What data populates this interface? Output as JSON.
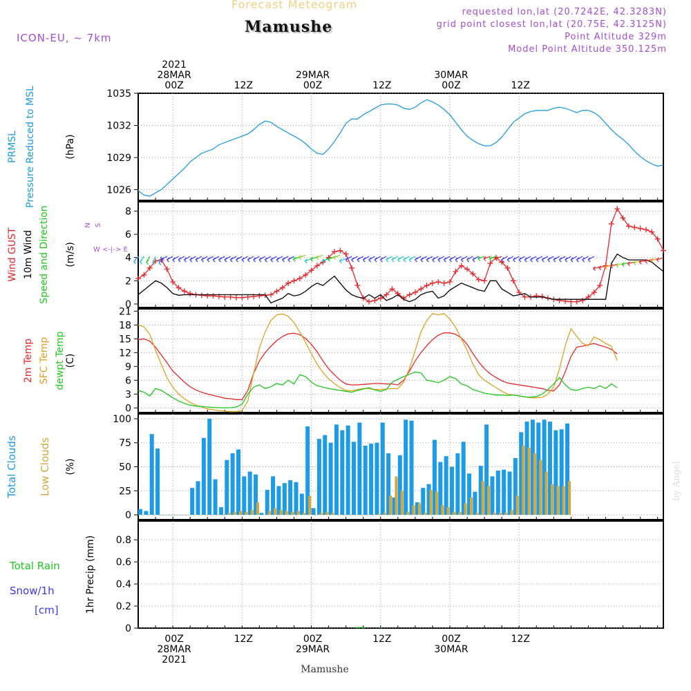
{
  "header": {
    "product": "Forecast Meteogram",
    "location": "Mamushe",
    "model": "ICON-EU, ~ 7km",
    "requested": "requested lon,lat (20.7242E, 42.3283N)",
    "grid": "grid point closest lon,lat (20.75E, 42.3125N)",
    "point_alt": "Point Altitude 329m",
    "model_alt": "Model Point Altitude 350.125m",
    "credit": "by Angel",
    "footer": "Mamushe"
  },
  "colors": {
    "pressure": "#1e9be6",
    "gust": "#e8262a",
    "wind": "#000000",
    "t2m": "#e8262a",
    "sfc": "#e0a020",
    "dewpt": "#1ec81e",
    "total_cloud": "#1e9be6",
    "low_cloud": "#d4a83a",
    "rain": "#1ec81e",
    "snow": "#3838f0",
    "purple": "#a64cd4"
  },
  "chart_data": {
    "type": "meteogram",
    "x_unit": "hours from 2021-03-27 18Z (hourly)",
    "time_axis": {
      "top_ticks": [
        {
          "h": 6,
          "lines": [
            "2021",
            "28MAR",
            "00Z"
          ]
        },
        {
          "h": 18,
          "lines": [
            "12Z"
          ]
        },
        {
          "h": 30,
          "lines": [
            "29MAR",
            "00Z"
          ]
        },
        {
          "h": 42,
          "lines": [
            "12Z"
          ]
        },
        {
          "h": 54,
          "lines": [
            "30MAR",
            "00Z"
          ]
        },
        {
          "h": 66,
          "lines": [
            "12Z"
          ]
        }
      ],
      "bottom_ticks": [
        {
          "h": 6,
          "lines": [
            "00Z",
            "28MAR",
            "2021"
          ]
        },
        {
          "h": 18,
          "lines": [
            "12Z"
          ]
        },
        {
          "h": 30,
          "lines": [
            "00Z",
            "29MAR"
          ]
        },
        {
          "h": 42,
          "lines": [
            "12Z"
          ]
        },
        {
          "h": 54,
          "lines": [
            "00Z",
            "30MAR"
          ]
        },
        {
          "h": 66,
          "lines": [
            "12Z"
          ]
        }
      ]
    },
    "panels": [
      {
        "id": "pressure",
        "title": "PRMSL Pressure Reduced to MSL",
        "ylabel": "(hPa)",
        "y_ticks": [
          1026,
          1029,
          1032,
          1035
        ],
        "ylim": [
          1025,
          1035
        ],
        "series": [
          {
            "name": "PRMSL",
            "color_key": "pressure",
            "values": [
              1025.9,
              1025.5,
              1025.4,
              1025.7,
              1026,
              1026.5,
              1027,
              1027.5,
              1028,
              1028.6,
              1029,
              1029.4,
              1029.6,
              1029.8,
              1030.2,
              1030.4,
              1030.6,
              1030.8,
              1031,
              1031.2,
              1031.6,
              1032.1,
              1032.4,
              1032.3,
              1031.9,
              1031.6,
              1031.3,
              1031,
              1030.7,
              1030.3,
              1029.8,
              1029.4,
              1029.3,
              1029.8,
              1030.5,
              1031.3,
              1032.2,
              1032.6,
              1032.6,
              1033,
              1033.3,
              1033.6,
              1033.9,
              1034.0,
              1034.0,
              1033.9,
              1033.6,
              1033.5,
              1033.7,
              1034.1,
              1034.4,
              1034.2,
              1033.9,
              1033.5,
              1033,
              1032.3,
              1031.6,
              1031.0,
              1030.6,
              1030.3,
              1030.1,
              1030.1,
              1030.4,
              1030.9,
              1031.6,
              1032.3,
              1032.7,
              1033.1,
              1033.3,
              1033.4,
              1033.4,
              1033.4,
              1033.6,
              1033.7,
              1033.6,
              1033.4,
              1033.2,
              1033.4,
              1033.4,
              1033.2,
              1032.8,
              1032.2,
              1031.6,
              1031.1,
              1030.7,
              1030.2,
              1029.6,
              1029.1,
              1028.7,
              1028.4,
              1028.2,
              1028.3
            ]
          }
        ]
      },
      {
        "id": "wind",
        "title_lines": [
          "Wind GUST",
          "10m Wind",
          "Speed and Direction"
        ],
        "ylabel": "(m/s)",
        "compass": [
          "N",
          "W <-|-> E",
          "S"
        ],
        "y_ticks": [
          0,
          2,
          4,
          6,
          8
        ],
        "ylim": [
          -0.3,
          8.8
        ],
        "series": [
          {
            "name": "Wind GUST",
            "color_key": "gust",
            "marker": "plus",
            "values": [
              2.2,
              2.5,
              3.1,
              3.7,
              3.8,
              3.0,
              1.9,
              1.4,
              1.1,
              0.9,
              0.8,
              0.75,
              0.7,
              0.7,
              0.65,
              0.6,
              0.6,
              0.55,
              0.55,
              0.6,
              0.65,
              0.7,
              0.75,
              0.8,
              1.1,
              1.4,
              1.8,
              2.0,
              2.2,
              2.5,
              2.9,
              3.3,
              3.6,
              4.0,
              4.5,
              4.6,
              4.3,
              3.1,
              1.6,
              0.5,
              0.2,
              0.3,
              0.5,
              0.8,
              1.3,
              0.9,
              0.5,
              0.8,
              1.0,
              1.3,
              1.6,
              1.8,
              1.9,
              1.8,
              1.9,
              2.8,
              3.3,
              3.0,
              2.6,
              2.1,
              2.0,
              3.5,
              4.0,
              3.6,
              3.1,
              2.0,
              1.0,
              0.6,
              0.6,
              0.7,
              0.65,
              0.5,
              0.4,
              0.3,
              0.25,
              0.2,
              0.2,
              0.3,
              0.6,
              1.0,
              1.6,
              3.3,
              6.9,
              8.2,
              7.4,
              6.7,
              6.6,
              6.5,
              6.4,
              6.2,
              5.6,
              4.6
            ]
          },
          {
            "name": "10m Wind",
            "color_key": "wind",
            "values": [
              0.8,
              1.2,
              1.6,
              2.0,
              1.8,
              1.4,
              0.9,
              0.75,
              0.8,
              0.8,
              0.8,
              0.8,
              0.8,
              0.8,
              0.8,
              0.8,
              0.8,
              0.8,
              0.8,
              0.8,
              0.8,
              0.8,
              0.8,
              0.1,
              0.3,
              0.5,
              0.9,
              0.7,
              0.8,
              1.1,
              1.5,
              1.8,
              1.6,
              2.0,
              2.4,
              1.8,
              1.2,
              0.8,
              0.6,
              0.5,
              0.8,
              0.5,
              0.8,
              0.3,
              0.5,
              0.8,
              0.4,
              0.2,
              0.4,
              0.8,
              1.0,
              1.1,
              0.5,
              0.7,
              1.2,
              1.5,
              1.8,
              1.6,
              1.4,
              1.2,
              1.1,
              2.0,
              2.0,
              1.3,
              1.0,
              0.7,
              0.8,
              0.9,
              0.6,
              0.6,
              0.6,
              0.5,
              0.4,
              0.4,
              0.4,
              0.4,
              0.4,
              0.4,
              0.4,
              0.4,
              0.4,
              0.4,
              3.5,
              4.3,
              4.0,
              3.8,
              3.8,
              3.8,
              3.8,
              3.6,
              3.2,
              2.8
            ]
          }
        ]
      },
      {
        "id": "temperature",
        "title_lines": [
          "2m Temp",
          "SFC Temp",
          "dewpt Temp"
        ],
        "ylabel": "(C)",
        "y_ticks": [
          0,
          3,
          6,
          9,
          12,
          15,
          18,
          21
        ],
        "ylim": [
          -1,
          21.5
        ],
        "series": [
          {
            "name": "2m Temp",
            "color_key": "t2m",
            "values": [
              14.8,
              15.0,
              14.5,
              13.2,
              11.5,
              9.8,
              8.0,
              6.8,
              5.6,
              4.6,
              3.9,
              3.4,
              3.0,
              2.7,
              2.4,
              2.1,
              2.0,
              1.8,
              1.8,
              3.8,
              7.5,
              10.2,
              12.0,
              13.4,
              14.6,
              15.5,
              16.1,
              16.2,
              15.9,
              15.1,
              13.8,
              12.2,
              10.2,
              8.5,
              7.2,
              6.0,
              5.2,
              5.0,
              5.0,
              5.1,
              5.2,
              5.3,
              5.3,
              5.2,
              5.2,
              5.0,
              6.0,
              8.0,
              10.2,
              12.0,
              13.5,
              14.8,
              15.8,
              16.3,
              16.3,
              16.0,
              15.2,
              13.8,
              11.8,
              10.0,
              8.5,
              7.4,
              6.6,
              5.9,
              5.4,
              5.2,
              5.0,
              4.8,
              4.6,
              4.4,
              4.2,
              3.8,
              3.7,
              5.0,
              7.8,
              11.2,
              13.2,
              13.4,
              13.7,
              14.0,
              13.6,
              13.2,
              12.7,
              11.7
            ]
          },
          {
            "name": "SFC Temp",
            "color_key": "sfc",
            "values": [
              18.0,
              17.6,
              16.0,
              12.5,
              9.5,
              6.5,
              4.5,
              3.0,
              2.0,
              1.2,
              0.6,
              0.2,
              -0.2,
              -0.4,
              -0.6,
              -0.7,
              -0.8,
              -0.8,
              -0.6,
              1.5,
              7.5,
              13.0,
              16.5,
              19.0,
              20.2,
              20.4,
              19.9,
              18.5,
              16.5,
              14.2,
              11.8,
              9.5,
              7.7,
              6.3,
              5.3,
              4.4,
              3.8,
              3.7,
              4.0,
              4.2,
              4.2,
              4.0,
              4.0,
              4.1,
              4.2,
              4.2,
              5.6,
              8.5,
              12.5,
              16.5,
              19.0,
              20.5,
              20.2,
              20.5,
              19.3,
              17.5,
              15.0,
              12.5,
              9.5,
              7.2,
              6.0,
              5.2,
              4.4,
              3.6,
              3.0,
              2.8,
              2.6,
              2.4,
              2.2,
              2.2,
              2.3,
              3.0,
              4.5,
              8.5,
              13.5,
              17.2,
              15.5,
              14.0,
              13.5,
              15.4,
              14.8,
              14.0,
              13.4,
              10.3
            ]
          },
          {
            "name": "dewpt Temp",
            "color_key": "dewpt",
            "values": [
              3.8,
              3.4,
              2.6,
              4.2,
              3.8,
              3.0,
              2.2,
              1.5,
              1.0,
              0.6,
              0.4,
              0.3,
              0.2,
              0.1,
              0.05,
              0.0,
              0.05,
              0.2,
              0.8,
              3.0,
              4.5,
              5.0,
              4.2,
              4.6,
              5.3,
              5.0,
              6.0,
              5.2,
              7.2,
              6.8,
              5.6,
              4.8,
              4.5,
              4.2,
              4.0,
              3.8,
              3.6,
              3.4,
              3.8,
              4.1,
              4.4,
              3.9,
              3.6,
              4.0,
              5.6,
              6.2,
              6.8,
              7.3,
              7.8,
              7.6,
              6.0,
              5.8,
              5.5,
              6.0,
              6.8,
              6.4,
              5.2,
              4.8,
              4.0,
              3.6,
              3.2,
              3.0,
              2.8,
              2.8,
              2.7,
              2.8,
              2.6,
              2.4,
              2.3,
              2.5,
              3.0,
              4.0,
              5.2,
              6.6,
              5.0,
              4.0,
              3.8,
              4.2,
              4.5,
              4.2,
              4.8,
              4.2,
              5.2,
              4.4
            ]
          }
        ]
      },
      {
        "id": "clouds",
        "title_lines": [
          "Total Clouds",
          "Low Clouds"
        ],
        "ylabel": "(%)",
        "y_ticks": [
          0,
          25,
          50,
          75,
          100
        ],
        "ylim": [
          -5,
          105
        ],
        "bars": [
          {
            "name": "Total Clouds",
            "color_key": "total_cloud",
            "values": [
              6,
              4,
              84,
              69,
              0,
              0,
              0,
              0,
              0,
              28,
              35,
              80,
              100,
              37,
              8,
              57,
              64,
              68,
              40,
              45,
              42,
              2,
              26,
              40,
              30,
              33,
              36,
              34,
              22,
              92,
              7,
              79,
              83,
              75,
              94,
              88,
              93,
              76,
              96,
              72,
              74,
              75,
              96,
              64,
              18,
              62,
              99,
              98,
              13,
              28,
              32,
              78,
              55,
              61,
              50,
              64,
              76,
              43,
              24,
              51,
              94,
              40,
              46,
              47,
              45,
              59,
              86,
              97,
              99,
              96,
              99,
              97,
              88,
              89,
              95
            ]
          },
          {
            "name": "Low Clouds",
            "color_key": "low_cloud",
            "values": [
              0,
              0,
              0,
              0,
              0,
              0,
              0,
              0,
              0,
              0,
              0,
              0,
              0,
              0,
              0,
              2,
              3,
              4,
              3,
              5,
              13,
              0,
              4,
              7,
              5,
              4,
              3,
              4,
              2,
              20,
              0,
              2,
              3,
              2,
              0,
              0,
              0,
              0,
              0,
              0,
              0,
              1,
              2,
              20,
              40,
              25,
              3,
              10,
              12,
              2,
              26,
              24,
              10,
              8,
              3,
              3,
              12,
              18,
              2,
              35,
              30,
              2,
              2,
              2,
              5,
              20,
              72,
              70,
              64,
              57,
              45,
              32,
              30,
              30,
              35
            ]
          }
        ]
      },
      {
        "id": "precip",
        "title_lines": [
          "Total Rain",
          "Snow/1h",
          "[cm]"
        ],
        "ylabel": "1hr Precip (mm)",
        "y_ticks": [
          0,
          0.2,
          0.4,
          0.6,
          0.8
        ],
        "ylim": [
          0,
          0.97
        ],
        "bars": [
          {
            "name": "Rain",
            "color_key": "rain",
            "hours": [
              38,
              39,
              42
            ],
            "values": [
              0.01,
              0.012,
              0.004
            ]
          }
        ]
      }
    ]
  }
}
